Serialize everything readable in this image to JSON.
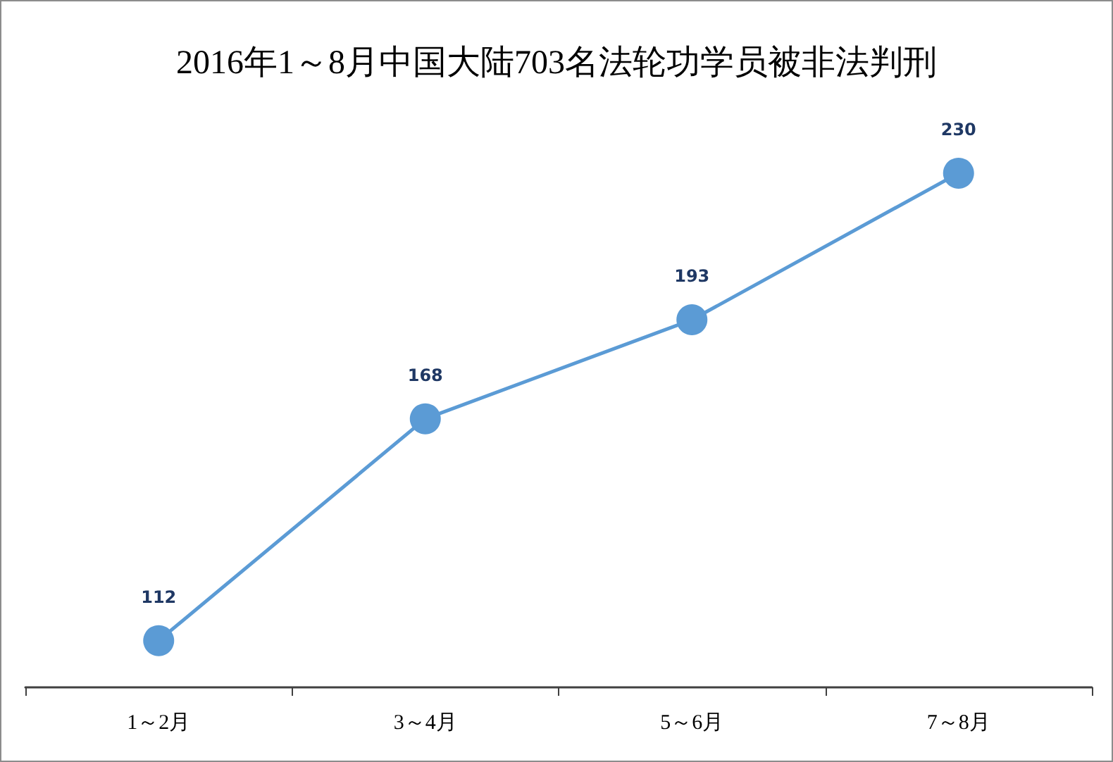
{
  "chart_data": {
    "type": "line",
    "title": "2016年1～8月中国大陆703名法轮功学员被非法判刑",
    "categories": [
      "1～2月",
      "3～4月",
      "5～6月",
      "7～8月"
    ],
    "series": [
      {
        "color": "#5b9bd5",
        "values": [
          112,
          168,
          193,
          230
        ]
      }
    ],
    "data_labels": true,
    "marker": "circle",
    "line_style": "solid",
    "grid": false
  }
}
